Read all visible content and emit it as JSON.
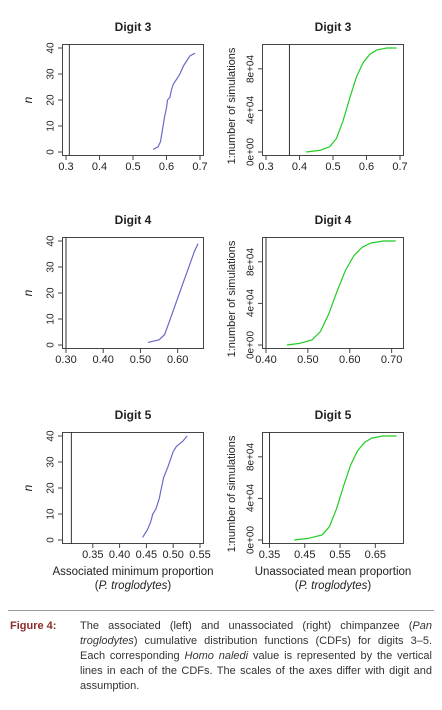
{
  "chart_data": [
    {
      "type": "line",
      "title": "Digit 3",
      "ylabel": "n",
      "xlabel": "",
      "xlim": [
        0.3,
        0.7
      ],
      "ylim": [
        0,
        40
      ],
      "xticks": [
        "0.3",
        "0.4",
        "0.5",
        "0.6",
        "0.7"
      ],
      "yticks": [
        "0",
        "10",
        "20",
        "30",
        "40"
      ],
      "vline": 0.31,
      "curve_color": "#6a6ac8",
      "x": [
        0.56,
        0.575,
        0.582,
        0.59,
        0.595,
        0.6,
        0.603,
        0.61,
        0.615,
        0.62,
        0.63,
        0.64,
        0.65,
        0.66,
        0.67,
        0.685
      ],
      "y": [
        1,
        2,
        4,
        10,
        14,
        17,
        20,
        21,
        24,
        26,
        28,
        30,
        33,
        35,
        37,
        38
      ]
    },
    {
      "type": "line",
      "title": "Digit 3",
      "ylabel": "1:number of simulations",
      "xlabel": "",
      "xlim": [
        0.3,
        0.7
      ],
      "ylim": [
        0,
        100000
      ],
      "xticks": [
        "0.3",
        "0.4",
        "0.5",
        "0.6",
        "0.7"
      ],
      "yticks": [
        "0e+00",
        "4e+04",
        "8e+04"
      ],
      "vline": 0.37,
      "curve_color": "#22cc22",
      "x": [
        0.42,
        0.46,
        0.49,
        0.51,
        0.53,
        0.55,
        0.57,
        0.59,
        0.61,
        0.63,
        0.66,
        0.69
      ],
      "y": [
        0,
        1500,
        5000,
        13000,
        30000,
        52000,
        72000,
        86000,
        94000,
        98000,
        100000,
        100000
      ]
    },
    {
      "type": "line",
      "title": "Digit 4",
      "ylabel": "n",
      "xlabel": "",
      "xlim": [
        0.3,
        0.66
      ],
      "ylim": [
        0,
        40
      ],
      "xticks": [
        "0.30",
        "0.40",
        "0.50",
        "0.60"
      ],
      "yticks": [
        "0",
        "10",
        "20",
        "30",
        "40"
      ],
      "vline": 0.3,
      "curve_color": "#6a6ac8",
      "x": [
        0.52,
        0.55,
        0.565,
        0.575,
        0.585,
        0.595,
        0.605,
        0.615,
        0.625,
        0.635,
        0.645,
        0.655
      ],
      "y": [
        1,
        2,
        4,
        8,
        12,
        16,
        20,
        24,
        28,
        32,
        36,
        39
      ]
    },
    {
      "type": "line",
      "title": "Digit 4",
      "ylabel": "1:number of simulations",
      "xlabel": "",
      "xlim": [
        0.4,
        0.72
      ],
      "ylim": [
        0,
        100000
      ],
      "xticks": [
        "0.40",
        "0.50",
        "0.60",
        "0.70"
      ],
      "yticks": [
        "0e+00",
        "4e+04",
        "8e+04"
      ],
      "vline": 0.4,
      "curve_color": "#22cc22",
      "x": [
        0.45,
        0.48,
        0.51,
        0.53,
        0.55,
        0.57,
        0.59,
        0.61,
        0.63,
        0.65,
        0.68,
        0.71
      ],
      "y": [
        0,
        1500,
        5000,
        13000,
        30000,
        52000,
        72000,
        86000,
        94000,
        98000,
        100000,
        100000
      ]
    },
    {
      "type": "line",
      "title": "Digit 5",
      "ylabel": "n",
      "xlabel": "Associated minimum proportion",
      "xlabel2": "(P. troglodytes)",
      "xlim": [
        0.3,
        0.55
      ],
      "ylim": [
        0,
        40
      ],
      "xticks": [
        "0.35",
        "0.40",
        "0.45",
        "0.50",
        "0.55"
      ],
      "yticks": [
        "0",
        "10",
        "20",
        "30",
        "40"
      ],
      "vline": 0.31,
      "curve_color": "#6a6ac8",
      "x": [
        0.443,
        0.452,
        0.458,
        0.462,
        0.468,
        0.474,
        0.478,
        0.482,
        0.486,
        0.49,
        0.495,
        0.5,
        0.506,
        0.512,
        0.518,
        0.526
      ],
      "y": [
        1,
        4,
        7,
        10,
        12,
        16,
        20,
        24,
        26,
        28,
        31,
        34,
        36,
        37,
        38,
        40
      ]
    },
    {
      "type": "line",
      "title": "Digit 5",
      "ylabel": "1:number of simulations",
      "xlabel": "Unassociated mean proportion",
      "xlabel2": "(P. troglodytes)",
      "xlim": [
        0.34,
        0.72
      ],
      "ylim": [
        0,
        100000
      ],
      "xticks": [
        "0.35",
        "0.45",
        "0.55",
        "0.65"
      ],
      "yticks": [
        "0e+00",
        "4e+04",
        "8e+04"
      ],
      "vline": 0.35,
      "curve_color": "#22cc22",
      "x": [
        0.42,
        0.46,
        0.5,
        0.52,
        0.54,
        0.56,
        0.58,
        0.6,
        0.62,
        0.64,
        0.67,
        0.71
      ],
      "y": [
        0,
        1500,
        5000,
        13000,
        30000,
        52000,
        72000,
        86000,
        94000,
        98000,
        100000,
        100000
      ]
    }
  ],
  "caption": {
    "label": "Figure 4:",
    "text": "The associated (left) and unassociated (right) chimpanzee (Pan troglodytes) cumulative distribution functions (CDFs) for digits 3–5. Each corresponding Homo naledi value is represented by the vertical lines in each of the CDFs. The scales of the axes differ with digit and assumption."
  }
}
